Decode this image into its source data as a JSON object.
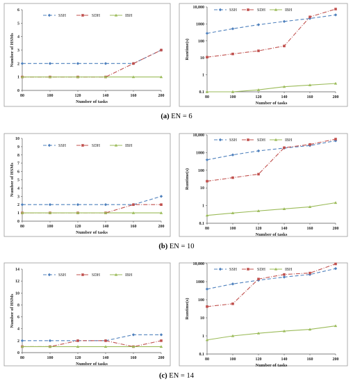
{
  "colors": {
    "ssh": "#4f81bd",
    "sdh": "#c0504d",
    "ibh": "#9bbb59",
    "frame": "#9a9a9a"
  },
  "captions": [
    {
      "letter": "(a)",
      "text": " EN = 6"
    },
    {
      "letter": "(b)",
      "text": " EN = 10"
    },
    {
      "letter": "(c)",
      "text": " EN = 14"
    }
  ],
  "chart_data": [
    {
      "type": "line",
      "panel": "a-left",
      "scale": "linear",
      "x": [
        80,
        100,
        120,
        140,
        160,
        200
      ],
      "xlabel": "Number of tasks",
      "ylabel": "Number of HSMs",
      "ylim": [
        0,
        6
      ],
      "yticks": [
        "0",
        "1",
        "2",
        "3",
        "4",
        "5",
        "6"
      ],
      "grid": false,
      "legend": "top",
      "series": [
        {
          "name": "SSH",
          "values": [
            2,
            2,
            2,
            2,
            2,
            3
          ]
        },
        {
          "name": "SDH",
          "values": [
            1,
            1,
            1,
            1,
            2,
            3
          ]
        },
        {
          "name": "IBH",
          "values": [
            1,
            1,
            1,
            1,
            1,
            1
          ]
        }
      ]
    },
    {
      "type": "line",
      "panel": "a-right",
      "scale": "log",
      "x": [
        80,
        100,
        120,
        140,
        160,
        200
      ],
      "xlabel": "Number of tasks",
      "ylabel": "Runtime(s)",
      "ylim": [
        0.1,
        10000
      ],
      "yticks": [
        "0.1",
        "1",
        "10",
        "100",
        "1000",
        "10,000"
      ],
      "grid": false,
      "legend": "top-left",
      "series": [
        {
          "name": "SSH",
          "values": [
            280,
            520,
            900,
            1400,
            2100,
            3400
          ]
        },
        {
          "name": "SDH",
          "values": [
            11,
            17,
            26,
            50,
            2600,
            7500
          ]
        },
        {
          "name": "IBH",
          "values": [
            0.1,
            0.1,
            0.13,
            0.2,
            0.25,
            0.31
          ]
        }
      ]
    },
    {
      "type": "line",
      "panel": "b-left",
      "scale": "linear",
      "x": [
        80,
        100,
        120,
        140,
        160,
        200
      ],
      "xlabel": "Number of tasks",
      "ylabel": "Number of HSMs",
      "ylim": [
        0,
        10
      ],
      "yticks": [
        "0",
        "1",
        "2",
        "3",
        "4",
        "5",
        "6",
        "7",
        "8",
        "9",
        "10"
      ],
      "grid": false,
      "legend": "top",
      "series": [
        {
          "name": "SSH",
          "values": [
            2,
            2,
            2,
            2,
            2,
            3
          ]
        },
        {
          "name": "SDH",
          "values": [
            1,
            1,
            1,
            1,
            2,
            2
          ]
        },
        {
          "name": "IBH",
          "values": [
            1,
            1,
            1,
            1,
            1,
            1
          ]
        }
      ]
    },
    {
      "type": "line",
      "panel": "b-right",
      "scale": "log",
      "x": [
        80,
        100,
        120,
        140,
        160,
        200
      ],
      "xlabel": "Number of tasks",
      "ylabel": "Runtime(s)",
      "ylim": [
        0.1,
        10000
      ],
      "yticks": [
        "0.1",
        "1",
        "10",
        "100",
        "1000",
        "10,000"
      ],
      "grid": false,
      "legend": "top-left",
      "series": [
        {
          "name": "SSH",
          "values": [
            390,
            740,
            1250,
            1800,
            2500,
            4700
          ]
        },
        {
          "name": "SDH",
          "values": [
            24,
            38,
            60,
            1900,
            2900,
            5800
          ]
        },
        {
          "name": "IBH",
          "values": [
            0.28,
            0.38,
            0.5,
            0.65,
            0.85,
            1.45
          ]
        }
      ]
    },
    {
      "type": "line",
      "panel": "c-left",
      "scale": "linear",
      "x": [
        80,
        100,
        120,
        140,
        160,
        200
      ],
      "xlabel": "Number of tasks",
      "ylabel": "Number of HSMs",
      "ylim": [
        0,
        14
      ],
      "yticks": [
        "0",
        "2",
        "4",
        "6",
        "8",
        "10",
        "12",
        "14"
      ],
      "grid": false,
      "legend": "top",
      "series": [
        {
          "name": "SSH",
          "values": [
            2,
            2,
            2,
            2,
            3,
            3
          ]
        },
        {
          "name": "SDH",
          "values": [
            1,
            1,
            2,
            2,
            1,
            2
          ]
        },
        {
          "name": "IBH",
          "values": [
            1,
            1,
            1,
            1,
            1,
            1
          ]
        }
      ]
    },
    {
      "type": "line",
      "panel": "c-right",
      "scale": "log",
      "x": [
        80,
        100,
        120,
        140,
        160,
        200
      ],
      "xlabel": "Number of tasks",
      "ylabel": "Runtime(s)",
      "ylim": [
        0.1,
        10000
      ],
      "yticks": [
        "0.1",
        "1",
        "10",
        "100",
        "1000",
        "10,000"
      ],
      "grid": false,
      "legend": "top-left",
      "series": [
        {
          "name": "SSH",
          "values": [
            390,
            750,
            1200,
            1800,
            2500,
            5300
          ]
        },
        {
          "name": "SDH",
          "values": [
            42,
            60,
            1400,
            2500,
            3000,
            9600
          ]
        },
        {
          "name": "IBH",
          "values": [
            0.6,
            1.0,
            1.4,
            1.85,
            2.3,
            3.6
          ]
        }
      ]
    }
  ]
}
